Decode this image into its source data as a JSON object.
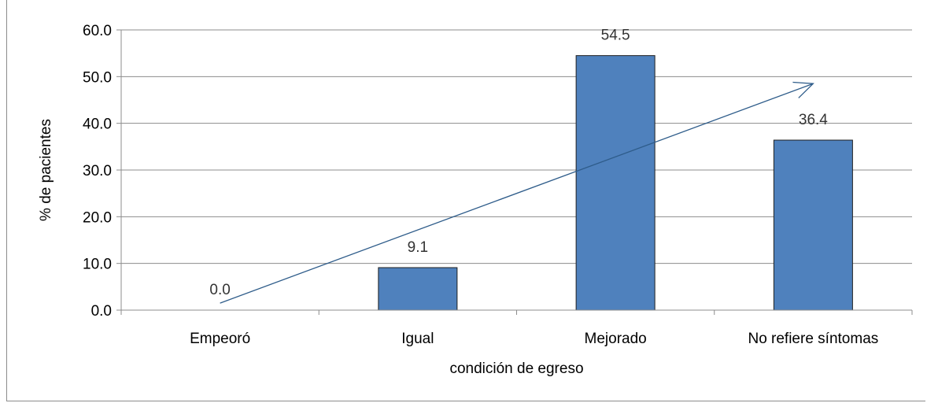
{
  "chart_data": {
    "type": "bar",
    "title": "",
    "xlabel": "condición de egreso",
    "ylabel": "% de pacientes",
    "categories": [
      "Empeoró",
      "Igual",
      "Mejorado",
      "No refiere síntomas"
    ],
    "values": [
      0.0,
      9.1,
      54.5,
      36.4
    ],
    "data_labels": [
      "0.0",
      "9.1",
      "54.5",
      "36.4"
    ],
    "ylim": [
      0,
      60
    ],
    "yticks": [
      "0.0",
      "10.0",
      "20.0",
      "30.0",
      "40.0",
      "50.0",
      "60.0"
    ],
    "grid": true,
    "legend": "none",
    "trend_arrow": {
      "from": [
        0,
        1.5
      ],
      "to": [
        3,
        48.5
      ]
    },
    "colors": {
      "bar": "#4f81bd",
      "bar_edge": "#1f1f1f",
      "grid": "#8c8c8c",
      "arrow": "#2e5c8a"
    }
  }
}
